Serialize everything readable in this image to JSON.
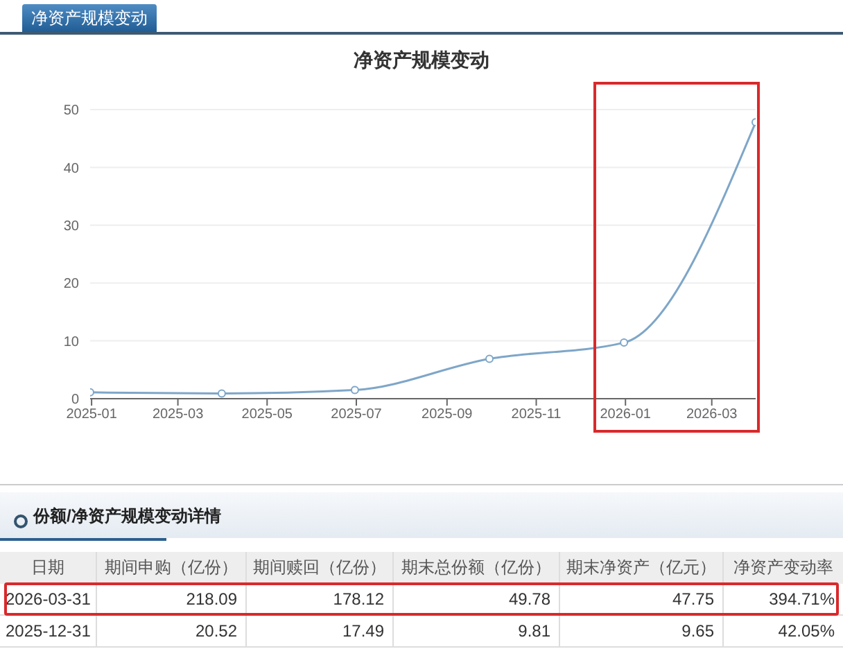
{
  "chart_data": [
    {
      "type": "line",
      "title": "净资产规模变动",
      "annotations": [
        "净资产规模变动"
      ],
      "x": [
        "2024-12-31",
        "2025-03-31",
        "2025-06-30",
        "2025-09-30",
        "2025-12-31",
        "2026-03-31"
      ],
      "values": [
        1.1,
        0.9,
        1.5,
        6.9,
        9.7,
        47.8
      ],
      "color": "#7ea6c8",
      "xlim": [
        "2024-12-31",
        "2026-03-31"
      ],
      "xticks": [
        "2025-01",
        "2025-03",
        "2025-05",
        "2025-07",
        "2025-09",
        "2025-11",
        "2026-01",
        "2026-03"
      ],
      "ylim": [
        0,
        50
      ],
      "yticks": [
        0,
        10,
        20,
        30,
        40,
        50
      ],
      "grid": "y",
      "marker": "circle",
      "line_style": "solid"
    },
    {
      "type": "other",
      "title": "份额/净资产规模变动详情",
      "ylabel": "日期",
      "categories": [
        "期间申购（亿份）",
        "期间赎回（亿份）",
        "期末总份额（亿份）",
        "期末净资产（亿元）",
        "净资产变动率"
      ],
      "y_categories": [
        "2026-03-31",
        "2025-12-31"
      ],
      "cell_labels": [
        [
          "218.09",
          "178.12",
          "49.78",
          "47.75",
          "394.71%"
        ],
        [
          "20.52",
          "17.49",
          "9.81",
          "9.65",
          "42.05%"
        ]
      ]
    }
  ]
}
